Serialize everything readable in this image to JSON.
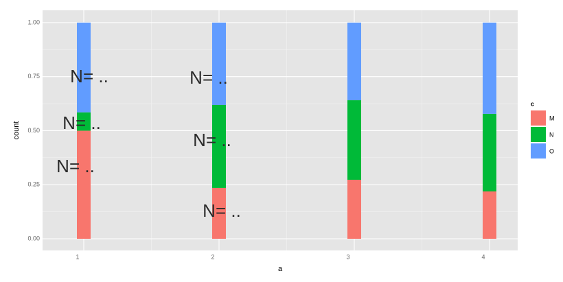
{
  "chart_data": {
    "type": "stacked_bar",
    "x_label": "a",
    "y_label": "count",
    "categories": [
      "1",
      "2",
      "3",
      "4"
    ],
    "series": [
      {
        "name": "M",
        "color": "#F8766D",
        "values": [
          0.5,
          0.235,
          0.273,
          0.219
        ]
      },
      {
        "name": "N",
        "color": "#00BA38",
        "values": [
          0.085,
          0.384,
          0.368,
          0.359
        ]
      },
      {
        "name": "O",
        "color": "#619CFF",
        "values": [
          0.415,
          0.381,
          0.359,
          0.422
        ]
      }
    ],
    "ylim": [
      -0.054,
      1.057
    ],
    "yticks": [
      {
        "value": 0,
        "label": "0.00"
      },
      {
        "value": 0.25,
        "label": "0.25"
      },
      {
        "value": 0.5,
        "label": "0.50"
      },
      {
        "value": 0.75,
        "label": "0.75"
      },
      {
        "value": 1,
        "label": "1.00"
      }
    ],
    "grid": true,
    "legend_title": "c",
    "legend_position": "right",
    "annotations": [
      "N= ..",
      "N= ..",
      "N= ..",
      "N= ..",
      "N= ..",
      "N= .."
    ]
  }
}
